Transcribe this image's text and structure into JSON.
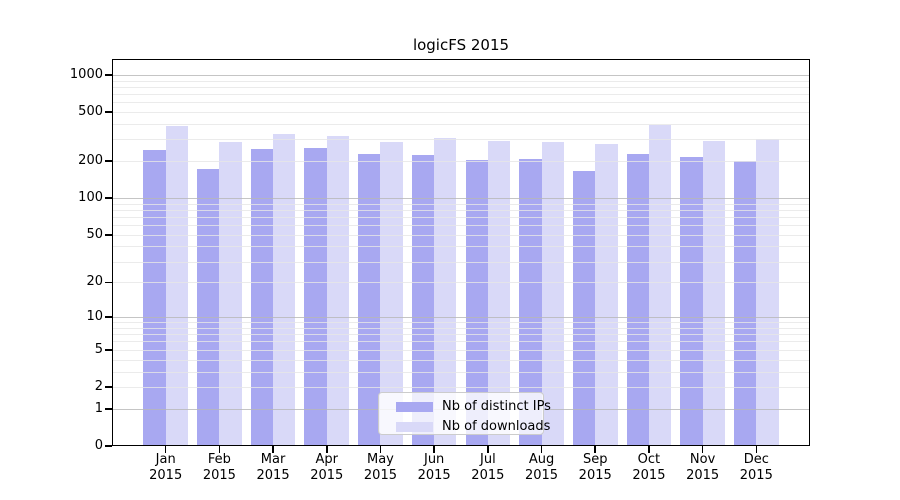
{
  "chart_data": {
    "type": "bar",
    "title": "logicFS 2015",
    "categories": [
      "Jan",
      "Feb",
      "Mar",
      "Apr",
      "May",
      "Jun",
      "Jul",
      "Aug",
      "Sep",
      "Oct",
      "Nov",
      "Dec"
    ],
    "x_tick_year": "2015",
    "series": [
      {
        "name": "Nb of distinct IPs",
        "color": "#a8a8f1",
        "values": [
          246,
          171,
          250,
          254,
          227,
          223,
          204,
          207,
          166,
          227,
          215,
          201
        ]
      },
      {
        "name": "Nb of downloads",
        "color": "#d9d9f8",
        "values": [
          385,
          285,
          331,
          319,
          286,
          310,
          291,
          284,
          275,
          391,
          293,
          304
        ]
      }
    ],
    "yscale": "log1p",
    "yticks": [
      0,
      1,
      2,
      5,
      10,
      20,
      50,
      100,
      200,
      500,
      1000
    ],
    "ylim": [
      0,
      1340
    ],
    "grid": true,
    "legend_position": "lower-center",
    "colors": {
      "major_grid": "#c4c4c4",
      "minor_grid": "#ececec",
      "axis": "#000000",
      "background": "#ffffff",
      "legend_border": "#cccccc"
    }
  }
}
